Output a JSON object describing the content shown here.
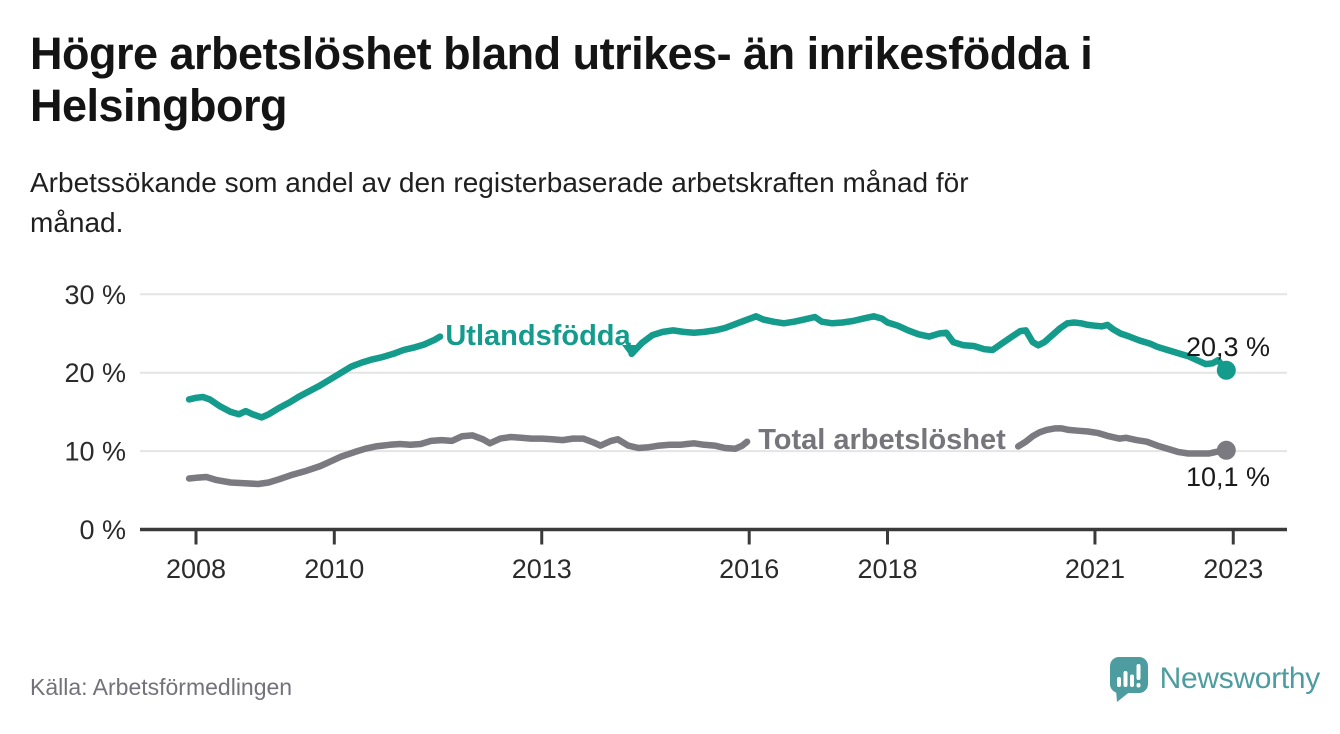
{
  "header": {
    "title": "Högre arbetslöshet bland utrikes- än inrikesfödda i\nHelsingborg",
    "subtitle": "Arbetssökande som andel av den registerbaserade arbetskraften månad för\nmånad."
  },
  "footer": {
    "source": "Källa: Arbetsförmedlingen",
    "brand": "Newsworthy"
  },
  "colors": {
    "utlandsfodda_line": "#149B8C",
    "total_line": "#7B7A80",
    "grid": "#E4E4E4",
    "axis": "#3A3A3A",
    "logo_teal": "#4D9DA0",
    "value_label": "#1A1A1A"
  },
  "chart_data": {
    "type": "line",
    "x_unit": "year (monthly observations)",
    "xlim": [
      2007.9,
      2023.75
    ],
    "ylim": [
      0,
      32
    ],
    "grid": "horizontal",
    "legend_position": "inline-on-lines",
    "yticks": [
      {
        "v": 0,
        "label": "0 %"
      },
      {
        "v": 10,
        "label": "10 %"
      },
      {
        "v": 20,
        "label": "20 %"
      },
      {
        "v": 30,
        "label": "30 %"
      }
    ],
    "xticks": [
      {
        "v": 2008,
        "label": "2008"
      },
      {
        "v": 2010,
        "label": "2010"
      },
      {
        "v": 2013,
        "label": "2013"
      },
      {
        "v": 2016,
        "label": "2016"
      },
      {
        "v": 2018,
        "label": "2018"
      },
      {
        "v": 2021,
        "label": "2021"
      },
      {
        "v": 2023,
        "label": "2023"
      }
    ],
    "series": [
      {
        "name": "Total arbetslöshet",
        "color": "#7B7A80",
        "end_label": "10,1 %",
        "end_value": 10.1,
        "segments": [
          [
            [
              2007.9,
              6.5
            ],
            [
              2008.0,
              6.6
            ],
            [
              2008.15,
              6.7
            ],
            [
              2008.3,
              6.3
            ],
            [
              2008.5,
              6.0
            ],
            [
              2008.7,
              5.9
            ],
            [
              2008.9,
              5.8
            ],
            [
              2009.05,
              6.0
            ],
            [
              2009.2,
              6.4
            ],
            [
              2009.4,
              7.0
            ],
            [
              2009.6,
              7.5
            ],
            [
              2009.8,
              8.1
            ],
            [
              2009.95,
              8.7
            ],
            [
              2010.1,
              9.3
            ],
            [
              2010.3,
              9.9
            ],
            [
              2010.45,
              10.3
            ],
            [
              2010.6,
              10.6
            ],
            [
              2010.8,
              10.8
            ],
            [
              2010.95,
              10.9
            ],
            [
              2011.1,
              10.8
            ],
            [
              2011.25,
              10.9
            ],
            [
              2011.4,
              11.3
            ],
            [
              2011.55,
              11.4
            ],
            [
              2011.7,
              11.3
            ],
            [
              2011.85,
              11.9
            ],
            [
              2012.0,
              12.0
            ],
            [
              2012.15,
              11.5
            ],
            [
              2012.25,
              11.0
            ],
            [
              2012.4,
              11.6
            ],
            [
              2012.55,
              11.8
            ],
            [
              2012.7,
              11.7
            ],
            [
              2012.85,
              11.6
            ],
            [
              2013.0,
              11.6
            ],
            [
              2013.15,
              11.5
            ],
            [
              2013.3,
              11.4
            ],
            [
              2013.45,
              11.6
            ],
            [
              2013.6,
              11.6
            ],
            [
              2013.75,
              11.1
            ],
            [
              2013.85,
              10.7
            ],
            [
              2014.0,
              11.3
            ],
            [
              2014.1,
              11.5
            ],
            [
              2014.25,
              10.7
            ],
            [
              2014.4,
              10.4
            ],
            [
              2014.55,
              10.5
            ],
            [
              2014.7,
              10.7
            ],
            [
              2014.85,
              10.8
            ],
            [
              2015.0,
              10.8
            ],
            [
              2015.1,
              10.9
            ],
            [
              2015.2,
              11.0
            ],
            [
              2015.35,
              10.8
            ],
            [
              2015.5,
              10.7
            ],
            [
              2015.65,
              10.4
            ],
            [
              2015.8,
              10.3
            ],
            [
              2015.9,
              10.7
            ],
            [
              2015.97,
              11.2
            ]
          ],
          [
            [
              2019.89,
              10.6
            ],
            [
              2020.0,
              11.2
            ],
            [
              2020.1,
              11.9
            ],
            [
              2020.2,
              12.4
            ],
            [
              2020.3,
              12.7
            ],
            [
              2020.42,
              12.9
            ],
            [
              2020.52,
              12.9
            ],
            [
              2020.62,
              12.7
            ],
            [
              2020.75,
              12.6
            ],
            [
              2020.9,
              12.5
            ],
            [
              2021.05,
              12.3
            ],
            [
              2021.2,
              11.9
            ],
            [
              2021.35,
              11.6
            ],
            [
              2021.45,
              11.7
            ],
            [
              2021.6,
              11.4
            ],
            [
              2021.75,
              11.2
            ],
            [
              2021.9,
              10.7
            ],
            [
              2022.05,
              10.3
            ],
            [
              2022.2,
              9.9
            ],
            [
              2022.35,
              9.7
            ],
            [
              2022.5,
              9.7
            ],
            [
              2022.65,
              9.7
            ],
            [
              2022.75,
              9.9
            ],
            [
              2022.9,
              10.1
            ]
          ]
        ]
      },
      {
        "name": "Utlandsfödda",
        "color": "#149B8C",
        "end_label": "20,3 %",
        "end_value": 20.3,
        "segments": [
          [
            [
              2007.9,
              16.6
            ],
            [
              2008.0,
              16.8
            ],
            [
              2008.1,
              16.9
            ],
            [
              2008.2,
              16.6
            ],
            [
              2008.35,
              15.7
            ],
            [
              2008.5,
              15.0
            ],
            [
              2008.62,
              14.7
            ],
            [
              2008.72,
              15.1
            ],
            [
              2008.82,
              14.7
            ],
            [
              2008.95,
              14.3
            ],
            [
              2009.05,
              14.7
            ],
            [
              2009.2,
              15.5
            ],
            [
              2009.35,
              16.2
            ],
            [
              2009.5,
              17.0
            ],
            [
              2009.65,
              17.7
            ],
            [
              2009.8,
              18.4
            ],
            [
              2009.95,
              19.2
            ],
            [
              2010.1,
              20.0
            ],
            [
              2010.25,
              20.8
            ],
            [
              2010.4,
              21.3
            ],
            [
              2010.55,
              21.7
            ],
            [
              2010.7,
              22.0
            ],
            [
              2010.85,
              22.4
            ],
            [
              2011.0,
              22.9
            ],
            [
              2011.15,
              23.2
            ],
            [
              2011.3,
              23.6
            ],
            [
              2011.45,
              24.2
            ],
            [
              2011.53,
              24.6
            ]
          ],
          [
            [
              2014.3,
              22.4
            ],
            [
              2014.45,
              23.8
            ],
            [
              2014.6,
              24.8
            ],
            [
              2014.75,
              25.2
            ],
            [
              2014.9,
              25.4
            ],
            [
              2015.05,
              25.2
            ],
            [
              2015.2,
              25.1
            ],
            [
              2015.35,
              25.2
            ],
            [
              2015.5,
              25.4
            ],
            [
              2015.65,
              25.7
            ],
            [
              2015.8,
              26.2
            ],
            [
              2015.95,
              26.7
            ],
            [
              2016.1,
              27.2
            ],
            [
              2016.2,
              26.8
            ],
            [
              2016.35,
              26.5
            ],
            [
              2016.5,
              26.3
            ],
            [
              2016.65,
              26.5
            ],
            [
              2016.8,
              26.8
            ],
            [
              2016.95,
              27.1
            ],
            [
              2017.05,
              26.5
            ],
            [
              2017.2,
              26.3
            ],
            [
              2017.35,
              26.4
            ],
            [
              2017.5,
              26.6
            ],
            [
              2017.65,
              26.9
            ],
            [
              2017.8,
              27.2
            ],
            [
              2017.92,
              26.9
            ],
            [
              2018.0,
              26.4
            ],
            [
              2018.15,
              26.0
            ],
            [
              2018.3,
              25.4
            ],
            [
              2018.45,
              24.9
            ],
            [
              2018.6,
              24.6
            ],
            [
              2018.75,
              25.0
            ],
            [
              2018.85,
              25.1
            ],
            [
              2018.95,
              23.9
            ],
            [
              2019.1,
              23.5
            ],
            [
              2019.25,
              23.4
            ],
            [
              2019.4,
              23.0
            ],
            [
              2019.52,
              22.9
            ],
            [
              2019.65,
              23.7
            ],
            [
              2019.8,
              24.6
            ],
            [
              2019.92,
              25.3
            ],
            [
              2020.0,
              25.4
            ],
            [
              2020.1,
              23.9
            ],
            [
              2020.18,
              23.5
            ],
            [
              2020.27,
              23.9
            ],
            [
              2020.37,
              24.7
            ],
            [
              2020.5,
              25.7
            ],
            [
              2020.6,
              26.3
            ],
            [
              2020.7,
              26.4
            ],
            [
              2020.8,
              26.3
            ],
            [
              2020.9,
              26.1
            ],
            [
              2021.0,
              26.0
            ],
            [
              2021.1,
              25.9
            ],
            [
              2021.18,
              26.1
            ],
            [
              2021.27,
              25.5
            ],
            [
              2021.37,
              25.0
            ],
            [
              2021.5,
              24.6
            ],
            [
              2021.65,
              24.1
            ],
            [
              2021.8,
              23.7
            ],
            [
              2021.9,
              23.3
            ],
            [
              2022.05,
              22.9
            ],
            [
              2022.2,
              22.5
            ],
            [
              2022.35,
              22.1
            ],
            [
              2022.5,
              21.5
            ],
            [
              2022.6,
              21.1
            ],
            [
              2022.7,
              21.2
            ],
            [
              2022.78,
              21.6
            ],
            [
              2022.9,
              20.3
            ]
          ]
        ]
      }
    ]
  }
}
